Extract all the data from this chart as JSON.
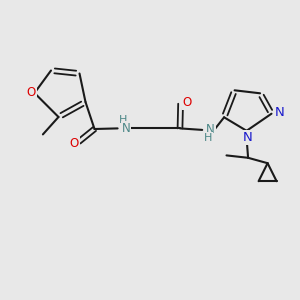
{
  "bg": "#e8e8e8",
  "bond": "#1a1a1a",
  "O_color": "#dd0000",
  "N_color": "#1a1acc",
  "NH_color": "#4d8888",
  "figsize": [
    3.0,
    3.0
  ],
  "dpi": 100,
  "xlim": [
    0,
    10
  ],
  "ylim": [
    0,
    10
  ]
}
